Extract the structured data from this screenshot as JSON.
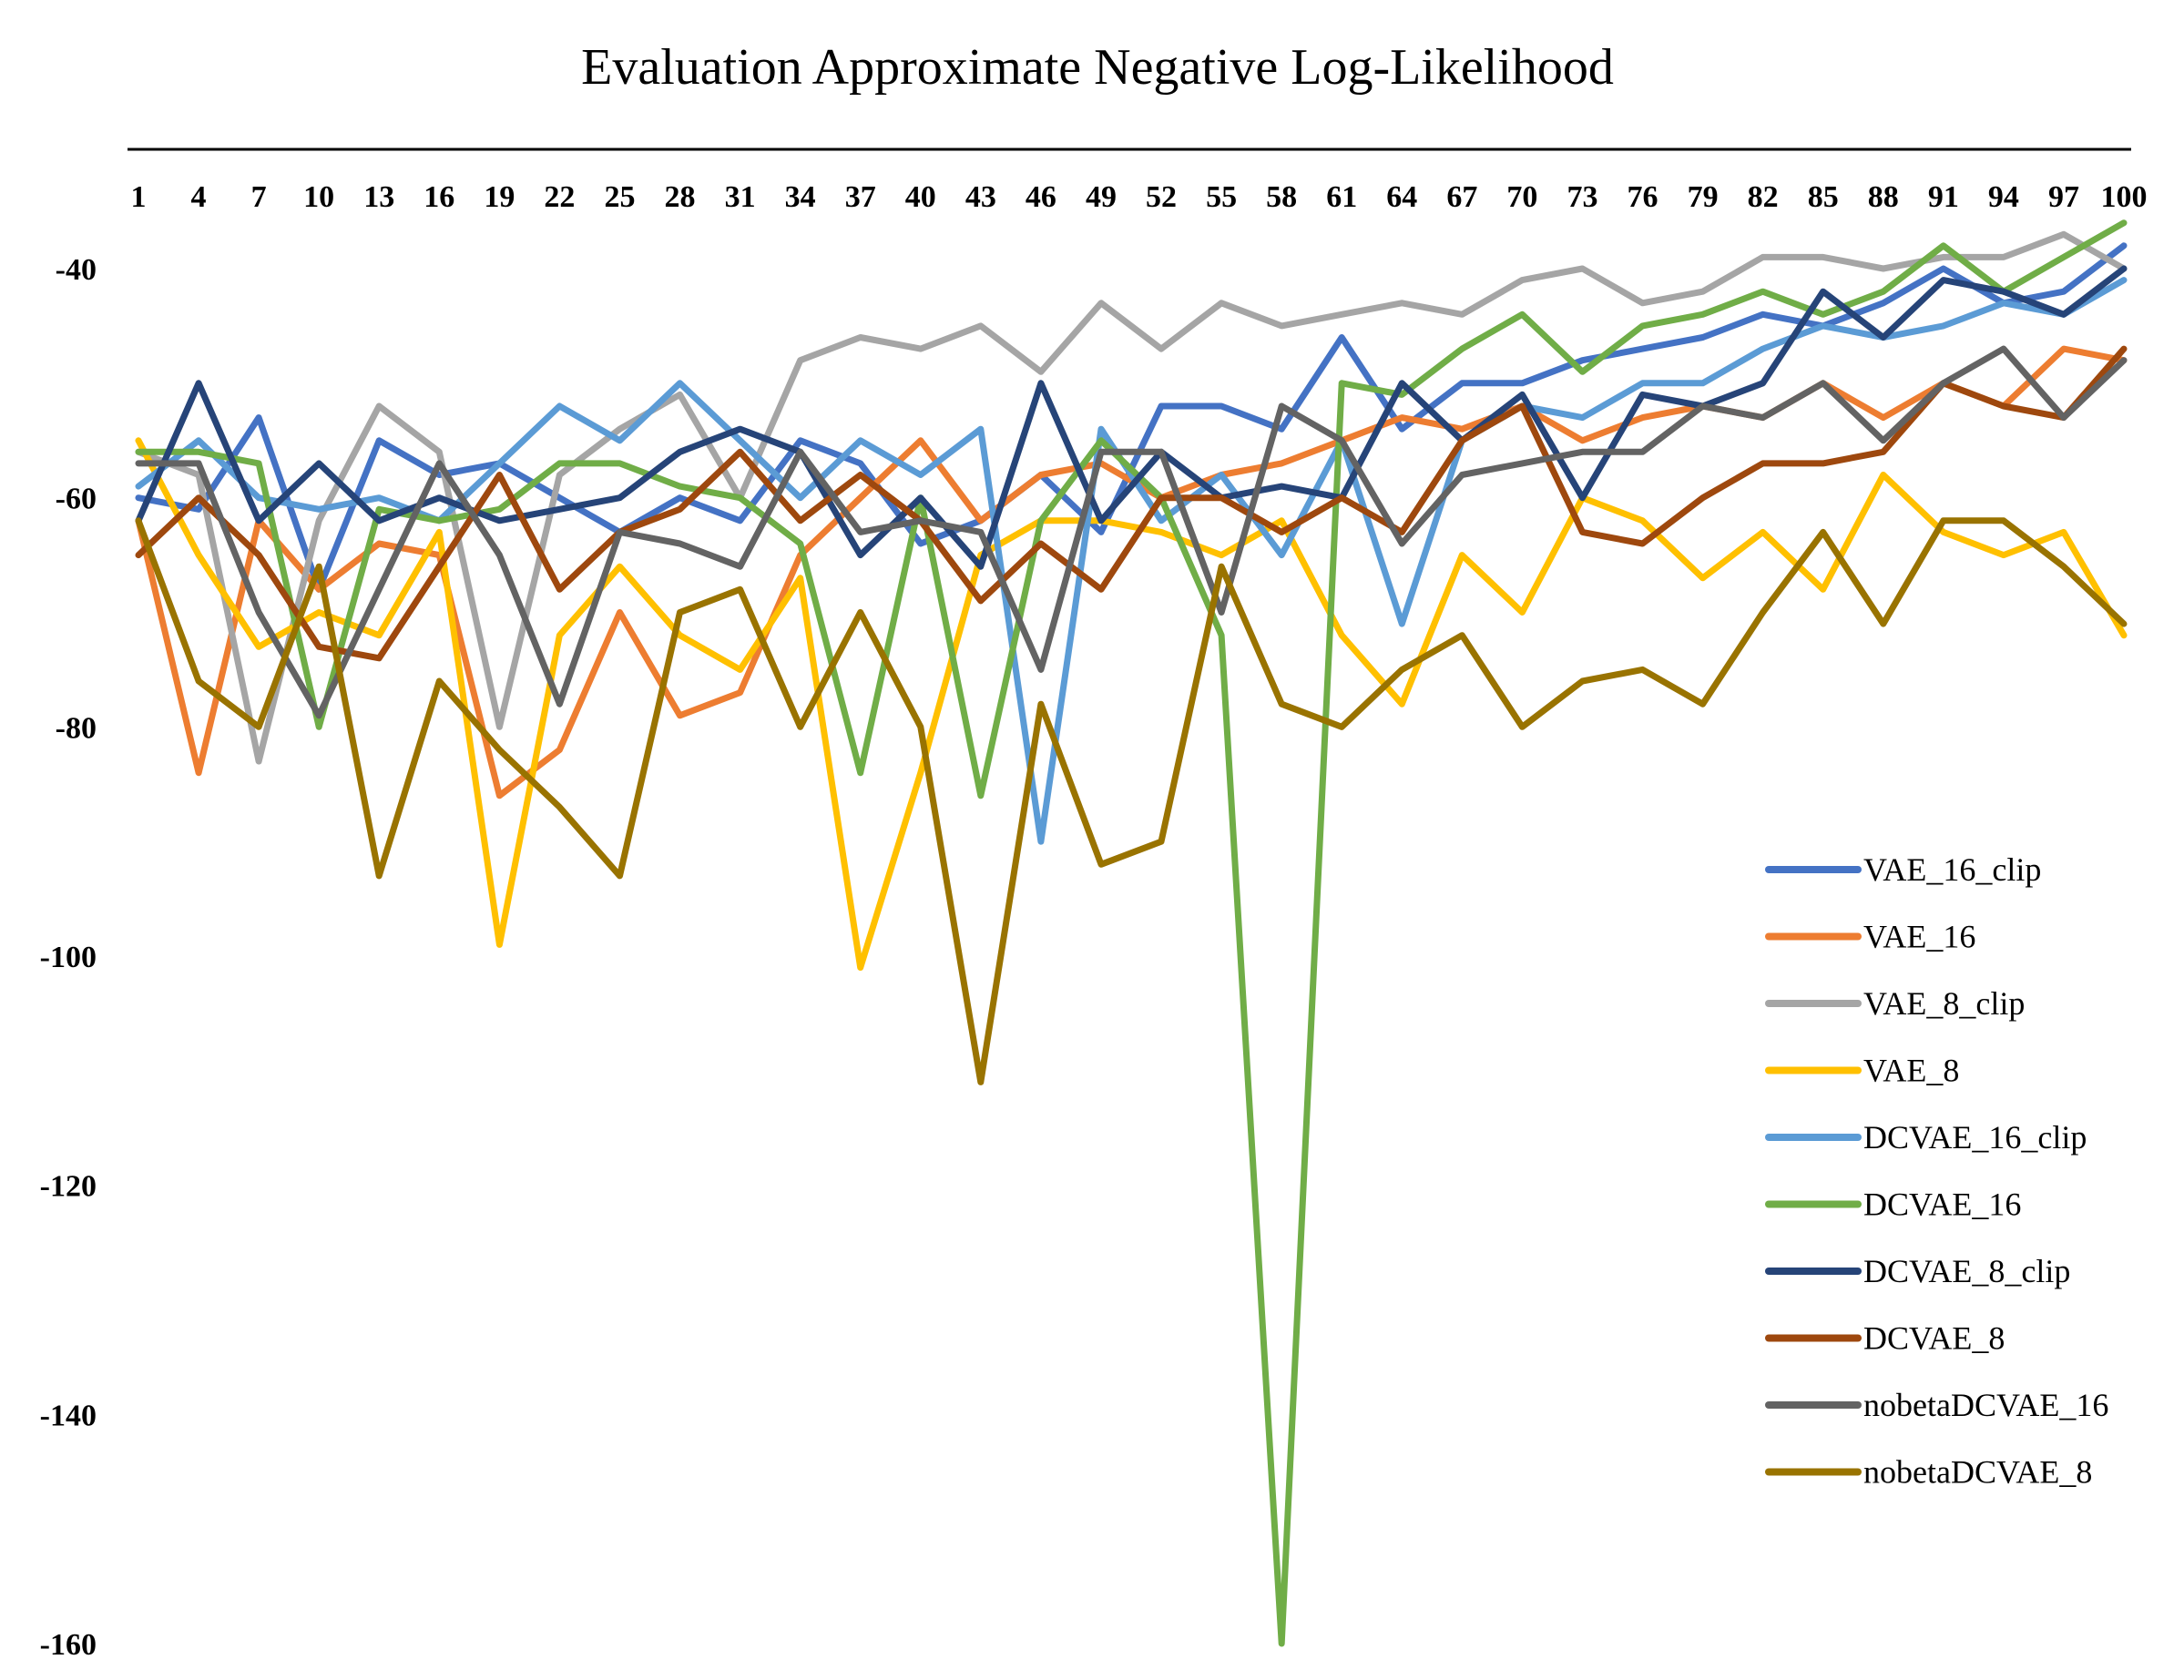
{
  "chart_data": {
    "type": "line",
    "title": "Evaluation Approximate Negative Log-Likelihood",
    "xlabel": "",
    "ylabel": "",
    "x_ticks": [
      1,
      4,
      7,
      10,
      13,
      16,
      19,
      22,
      25,
      28,
      31,
      34,
      37,
      40,
      43,
      46,
      49,
      52,
      55,
      58,
      61,
      64,
      67,
      70,
      73,
      76,
      79,
      82,
      85,
      88,
      91,
      94,
      97,
      100
    ],
    "y_ticks": [
      -40,
      -60,
      -80,
      -100,
      -120,
      -140,
      -160
    ],
    "xlim": [
      1,
      100
    ],
    "ylim": [
      -160,
      -36
    ],
    "grid": false,
    "legend_position": "right",
    "series_sampling": "values listed at every 3rd epoch: 1,4,7,...,97,100",
    "series": [
      {
        "name": "VAE_16_clip",
        "color": "#4472C4",
        "values": [
          -60,
          -61,
          -53,
          -68,
          -55,
          -58,
          -57,
          -60,
          -63,
          -60,
          -62,
          -55,
          -57,
          -64,
          -62,
          -58,
          -63,
          -52,
          -52,
          -54,
          -46,
          -54,
          -50,
          -50,
          -48,
          -47,
          -46,
          -44,
          -45,
          -43,
          -40,
          -43,
          -42,
          -38
        ]
      },
      {
        "name": "VAE_16",
        "color": "#ED7D31",
        "values": [
          -62,
          -84,
          -62,
          -68,
          -64,
          -65,
          -86,
          -82,
          -70,
          -79,
          -77,
          -65,
          -60,
          -55,
          -62,
          -58,
          -57,
          -60,
          -58,
          -57,
          -55,
          -53,
          -54,
          -52,
          -55,
          -53,
          -52,
          -53,
          -50,
          -53,
          -50,
          -52,
          -47,
          -48
        ]
      },
      {
        "name": "VAE_8_clip",
        "color": "#A5A5A5",
        "values": [
          -56,
          -58,
          -83,
          -62,
          -52,
          -56,
          -80,
          -58,
          -54,
          -51,
          -60,
          -48,
          -46,
          -47,
          -45,
          -49,
          -43,
          -47,
          -43,
          -45,
          -44,
          -43,
          -44,
          -41,
          -40,
          -43,
          -42,
          -39,
          -39,
          -40,
          -39,
          -39,
          -37,
          -40
        ]
      },
      {
        "name": "VAE_8",
        "color": "#FFC000",
        "values": [
          -55,
          -65,
          -73,
          -70,
          -72,
          -63,
          -99,
          -72,
          -66,
          -72,
          -75,
          -67,
          -101,
          -84,
          -65,
          -62,
          -62,
          -63,
          -65,
          -62,
          -72,
          -78,
          -65,
          -70,
          -60,
          -62,
          -67,
          -63,
          -68,
          -58,
          -63,
          -65,
          -63,
          -72
        ]
      },
      {
        "name": "DCVAE_16_clip",
        "color": "#5B9BD5",
        "values": [
          -59,
          -55,
          -60,
          -61,
          -60,
          -62,
          -57,
          -52,
          -55,
          -50,
          -55,
          -60,
          -55,
          -58,
          -54,
          -90,
          -54,
          -62,
          -58,
          -65,
          -55,
          -71,
          -55,
          -52,
          -53,
          -50,
          -50,
          -47,
          -45,
          -46,
          -45,
          -43,
          -44,
          -41
        ]
      },
      {
        "name": "DCVAE_16",
        "color": "#70AD47",
        "values": [
          -56,
          -56,
          -57,
          -80,
          -61,
          -62,
          -61,
          -57,
          -57,
          -59,
          -60,
          -64,
          -84,
          -60,
          -86,
          -62,
          -55,
          -60,
          -72,
          -160,
          -50,
          -51,
          -47,
          -44,
          -49,
          -45,
          -44,
          -42,
          -44,
          -42,
          -38,
          -42,
          -39,
          -36
        ]
      },
      {
        "name": "DCVAE_8_clip",
        "color": "#264478",
        "values": [
          -62,
          -50,
          -62,
          -57,
          -62,
          -60,
          -62,
          -61,
          -60,
          -56,
          -54,
          -56,
          -65,
          -60,
          -66,
          -50,
          -62,
          -56,
          -60,
          -59,
          -60,
          -50,
          -55,
          -51,
          -60,
          -51,
          -52,
          -50,
          -42,
          -46,
          -41,
          -42,
          -44,
          -40
        ]
      },
      {
        "name": "DCVAE_8",
        "color": "#9E480E",
        "values": [
          -65,
          -60,
          -65,
          -73,
          -74,
          -66,
          -58,
          -68,
          -63,
          -61,
          -56,
          -62,
          -58,
          -62,
          -69,
          -64,
          -68,
          -60,
          -60,
          -63,
          -60,
          -63,
          -55,
          -52,
          -63,
          -64,
          -60,
          -57,
          -57,
          -56,
          -50,
          -52,
          -53,
          -47
        ]
      },
      {
        "name": "nobetaDCVAE_16",
        "color": "#636363",
        "values": [
          -57,
          -57,
          -70,
          -79,
          -68,
          -57,
          -65,
          -78,
          -63,
          -64,
          -66,
          -56,
          -63,
          -62,
          -63,
          -75,
          -56,
          -56,
          -70,
          -52,
          -55,
          -64,
          -58,
          -57,
          -56,
          -56,
          -52,
          -53,
          -50,
          -55,
          -50,
          -47,
          -53,
          -48
        ]
      },
      {
        "name": "nobetaDCVAE_8",
        "color": "#997300",
        "values": [
          -62,
          -76,
          -80,
          -66,
          -93,
          -76,
          -82,
          -87,
          -93,
          -70,
          -68,
          -80,
          -70,
          -80,
          -111,
          -78,
          -92,
          -90,
          -66,
          -78,
          -80,
          -75,
          -72,
          -80,
          -76,
          -75,
          -78,
          -70,
          -63,
          -71,
          -62,
          -62,
          -66,
          -71
        ]
      }
    ]
  }
}
